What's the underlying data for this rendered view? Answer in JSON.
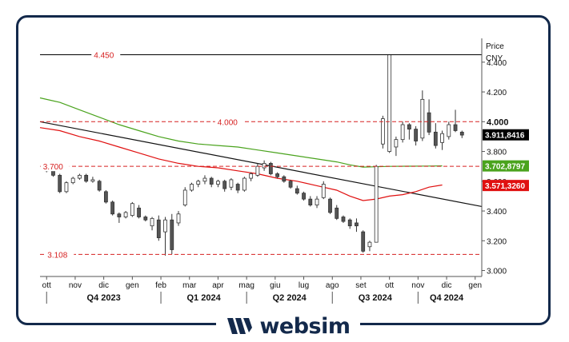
{
  "brand": {
    "name": "websim",
    "color": "#13294b"
  },
  "chart_data": {
    "type": "candlestick",
    "title": "",
    "ylabel": "Price",
    "yunit": "CNY",
    "ylim": [
      2.96,
      4.56
    ],
    "y_ticks": [
      "4.400",
      "4.200",
      "4.000",
      "3.800",
      "3.600",
      "3.400",
      "3.200",
      "3.000"
    ],
    "x_month_labels": [
      "ott",
      "nov",
      "dic",
      "gen",
      "feb",
      "mar",
      "apr",
      "mag",
      "giu",
      "lug",
      "ago",
      "set",
      "ott",
      "nov",
      "dic",
      "gen"
    ],
    "x_quarter_labels": [
      "Q4 2023",
      "Q1 2024",
      "Q2 2024",
      "Q3 2024",
      "Q4 2024"
    ],
    "x_range_weeks": [
      0,
      67
    ],
    "horizontal_levels": [
      {
        "label": "4.450",
        "value": 4.45,
        "style": "solid",
        "color": "#000000"
      },
      {
        "label": "4.000",
        "value": 4.0,
        "style": "dashed",
        "color": "#d62020"
      },
      {
        "label": "3.700",
        "value": 3.7,
        "style": "dashed",
        "color": "#d62020"
      },
      {
        "label": "3.108",
        "value": 3.108,
        "style": "dashed",
        "color": "#d62020"
      }
    ],
    "price_badges": [
      {
        "label": "3.911,8416",
        "value": 3.9118,
        "bg": "#000000",
        "fg": "#ffffff"
      },
      {
        "label": "3.702,8797",
        "value": 3.7029,
        "bg": "#4aa31d",
        "fg": "#ffffff"
      },
      {
        "label": "3.571,3260",
        "value": 3.5713,
        "bg": "#e01010",
        "fg": "#ffffff"
      }
    ],
    "trendline": {
      "color": "#111111",
      "from": [
        0,
        4.0
      ],
      "to": [
        67,
        3.43
      ]
    },
    "moving_averages": [
      {
        "color": "#4aa31d",
        "points": [
          [
            0,
            4.16
          ],
          [
            3,
            4.13
          ],
          [
            6,
            4.08
          ],
          [
            9,
            4.03
          ],
          [
            12,
            3.98
          ],
          [
            15,
            3.94
          ],
          [
            18,
            3.9
          ],
          [
            21,
            3.87
          ],
          [
            24,
            3.85
          ],
          [
            27,
            3.84
          ],
          [
            30,
            3.83
          ],
          [
            33,
            3.81
          ],
          [
            36,
            3.79
          ],
          [
            39,
            3.77
          ],
          [
            42,
            3.75
          ],
          [
            45,
            3.73
          ],
          [
            47,
            3.71
          ],
          [
            49,
            3.695
          ],
          [
            51,
            3.697
          ],
          [
            53,
            3.7
          ],
          [
            56,
            3.701
          ],
          [
            59,
            3.702
          ],
          [
            61,
            3.703
          ]
        ]
      },
      {
        "color": "#e01010",
        "points": [
          [
            0,
            3.96
          ],
          [
            3,
            3.94
          ],
          [
            6,
            3.9
          ],
          [
            9,
            3.87
          ],
          [
            12,
            3.83
          ],
          [
            15,
            3.79
          ],
          [
            18,
            3.75
          ],
          [
            21,
            3.72
          ],
          [
            24,
            3.7
          ],
          [
            27,
            3.69
          ],
          [
            30,
            3.67
          ],
          [
            33,
            3.65
          ],
          [
            36,
            3.62
          ],
          [
            39,
            3.6
          ],
          [
            42,
            3.57
          ],
          [
            45,
            3.54
          ],
          [
            47,
            3.5
          ],
          [
            49,
            3.47
          ],
          [
            51,
            3.48
          ],
          [
            53,
            3.5
          ],
          [
            55,
            3.51
          ],
          [
            57,
            3.53
          ],
          [
            59,
            3.56
          ],
          [
            61,
            3.575
          ]
        ]
      }
    ],
    "candles": [
      [
        1,
        3.69,
        3.67,
        3.71,
        3.66
      ],
      [
        2,
        3.69,
        3.64,
        3.7,
        3.63
      ],
      [
        3,
        3.64,
        3.53,
        3.65,
        3.52
      ],
      [
        4,
        3.53,
        3.59,
        3.6,
        3.52
      ],
      [
        5,
        3.59,
        3.62,
        3.63,
        3.58
      ],
      [
        6,
        3.62,
        3.64,
        3.65,
        3.61
      ],
      [
        7,
        3.64,
        3.6,
        3.65,
        3.59
      ],
      [
        8,
        3.6,
        3.61,
        3.63,
        3.59
      ],
      [
        9,
        3.6,
        3.54,
        3.61,
        3.53
      ],
      [
        10,
        3.53,
        3.46,
        3.54,
        3.45
      ],
      [
        11,
        3.46,
        3.38,
        3.47,
        3.37
      ],
      [
        12,
        3.38,
        3.36,
        3.39,
        3.32
      ],
      [
        13,
        3.36,
        3.39,
        3.4,
        3.35
      ],
      [
        14,
        3.37,
        3.45,
        3.46,
        3.36
      ],
      [
        15,
        3.42,
        3.36,
        3.44,
        3.35
      ],
      [
        16,
        3.36,
        3.34,
        3.37,
        3.33
      ],
      [
        17,
        3.3,
        3.35,
        3.36,
        3.27
      ],
      [
        18,
        3.34,
        3.22,
        3.37,
        3.2
      ],
      [
        19,
        3.26,
        3.34,
        3.36,
        3.1
      ],
      [
        20,
        3.34,
        3.14,
        3.38,
        3.11
      ],
      [
        21,
        3.32,
        3.38,
        3.4,
        3.3
      ],
      [
        22,
        3.44,
        3.54,
        3.56,
        3.43
      ],
      [
        23,
        3.54,
        3.58,
        3.59,
        3.53
      ],
      [
        24,
        3.58,
        3.6,
        3.61,
        3.56
      ],
      [
        25,
        3.6,
        3.62,
        3.64,
        3.58
      ],
      [
        26,
        3.62,
        3.58,
        3.63,
        3.56
      ],
      [
        27,
        3.58,
        3.6,
        3.61,
        3.56
      ],
      [
        28,
        3.6,
        3.55,
        3.61,
        3.53
      ],
      [
        29,
        3.56,
        3.61,
        3.62,
        3.54
      ],
      [
        30,
        3.58,
        3.54,
        3.59,
        3.52
      ],
      [
        31,
        3.54,
        3.62,
        3.63,
        3.53
      ],
      [
        32,
        3.62,
        3.65,
        3.66,
        3.6
      ],
      [
        33,
        3.64,
        3.7,
        3.72,
        3.63
      ],
      [
        34,
        3.69,
        3.72,
        3.74,
        3.67
      ],
      [
        35,
        3.72,
        3.65,
        3.73,
        3.64
      ],
      [
        36,
        3.65,
        3.63,
        3.66,
        3.62
      ],
      [
        37,
        3.63,
        3.6,
        3.64,
        3.59
      ],
      [
        38,
        3.6,
        3.56,
        3.61,
        3.55
      ],
      [
        39,
        3.55,
        3.52,
        3.57,
        3.51
      ],
      [
        40,
        3.52,
        3.48,
        3.53,
        3.47
      ],
      [
        41,
        3.48,
        3.44,
        3.5,
        3.43
      ],
      [
        42,
        3.44,
        3.48,
        3.5,
        3.42
      ],
      [
        43,
        3.49,
        3.58,
        3.6,
        3.48
      ],
      [
        44,
        3.48,
        3.39,
        3.49,
        3.38
      ],
      [
        45,
        3.42,
        3.35,
        3.44,
        3.34
      ],
      [
        46,
        3.36,
        3.33,
        3.37,
        3.32
      ],
      [
        47,
        3.34,
        3.3,
        3.35,
        3.28
      ],
      [
        48,
        3.32,
        3.3,
        3.35,
        3.26
      ],
      [
        49,
        3.26,
        3.13,
        3.27,
        3.12
      ],
      [
        50,
        3.16,
        3.19,
        3.2,
        3.13
      ],
      [
        51,
        3.19,
        3.7,
        3.71,
        3.19
      ],
      [
        52,
        3.85,
        4.02,
        4.04,
        3.82
      ],
      [
        53,
        3.8,
        4.45,
        4.45,
        3.79
      ],
      [
        54,
        3.83,
        3.88,
        3.9,
        3.77
      ],
      [
        55,
        3.88,
        3.98,
        4.0,
        3.86
      ],
      [
        56,
        3.98,
        3.95,
        3.99,
        3.88
      ],
      [
        57,
        3.95,
        3.87,
        3.97,
        3.84
      ],
      [
        58,
        3.89,
        4.15,
        4.21,
        3.87
      ],
      [
        59,
        4.06,
        3.93,
        4.15,
        3.91
      ],
      [
        60,
        3.93,
        3.84,
        3.99,
        3.82
      ],
      [
        61,
        3.86,
        3.92,
        3.94,
        3.81
      ],
      [
        62,
        3.9,
        3.98,
        4.0,
        3.88
      ],
      [
        63,
        3.98,
        3.94,
        4.08,
        3.93
      ],
      [
        64,
        3.93,
        3.91,
        3.94,
        3.89
      ]
    ]
  }
}
